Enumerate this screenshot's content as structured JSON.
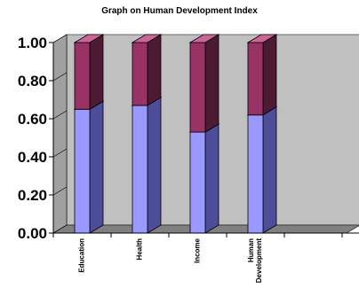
{
  "chart_data": {
    "type": "bar",
    "stacked": true,
    "three_d": true,
    "title": "Graph on Human Development Index",
    "categories": [
      [
        "Education"
      ],
      [
        "Health"
      ],
      [
        "Income"
      ],
      [
        "Human",
        "Development"
      ]
    ],
    "series": [
      {
        "values": [
          0.65,
          0.67,
          0.53,
          0.62
        ]
      },
      {
        "values": [
          0.35,
          0.33,
          0.47,
          0.38
        ]
      }
    ],
    "ylim": [
      0,
      1
    ],
    "yticks": [
      "0.00",
      "0.20",
      "0.40",
      "0.60",
      "0.80",
      "1.00"
    ],
    "grid": false,
    "legend": "none",
    "colors": {
      "series0_front": "#9999ff",
      "series0_side": "#4d4d99",
      "series0_top": "#ccccff",
      "series1_front": "#993366",
      "series1_side": "#4d1a33",
      "series1_top": "#cc6699",
      "back_wall": "#c0c0c0",
      "side_wall": "#a0a0a0",
      "floor": "#808080"
    }
  }
}
